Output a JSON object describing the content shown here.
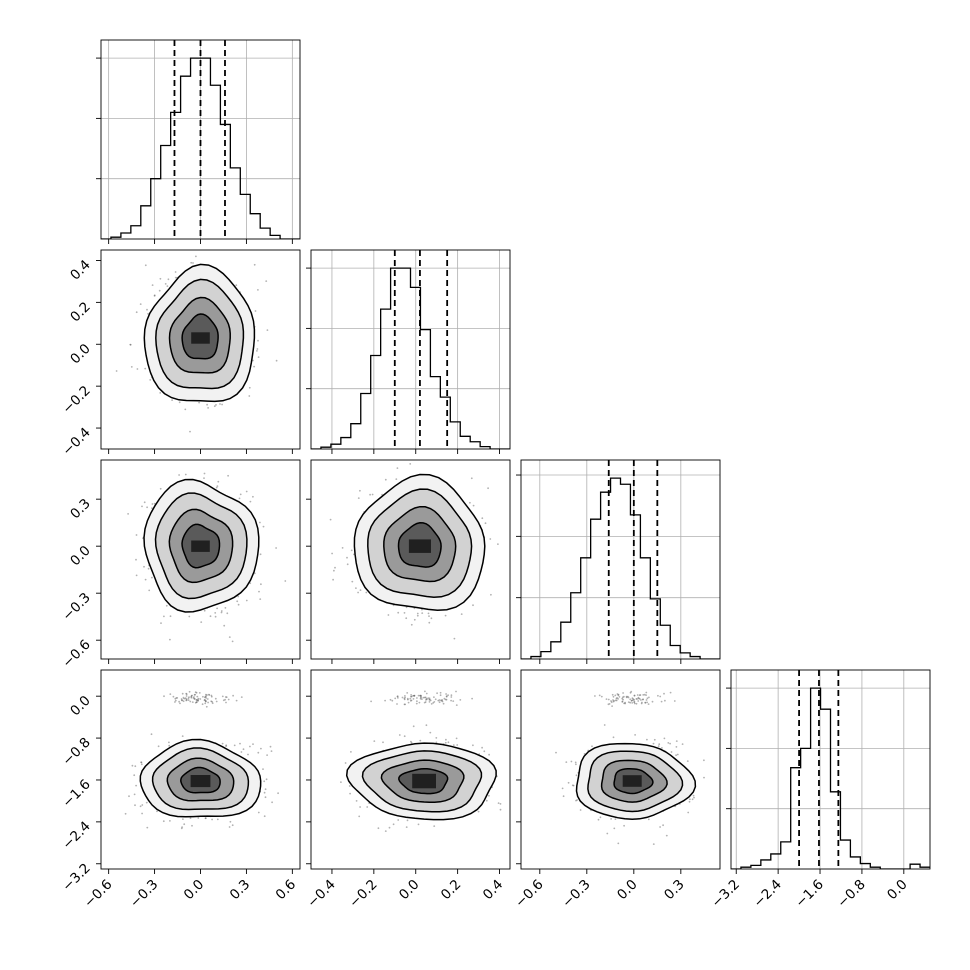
{
  "chart_data": {
    "type": "corner",
    "grid": true,
    "colors": {
      "line": "#000000",
      "density": "#000000",
      "points": "#555555",
      "gridline": "#b0b0b0"
    },
    "parameters": [
      {
        "index": 0,
        "range": [
          -0.65,
          0.65
        ],
        "ticks": [
          -0.6,
          -0.3,
          0.0,
          0.3,
          0.6
        ],
        "tick_labels": [
          "−0.6",
          "−0.3",
          "0.0",
          "0.3",
          "0.6"
        ],
        "quantiles": [
          -0.17,
          0.0,
          0.16
        ],
        "hist": {
          "start": -0.65,
          "step": 0.065,
          "counts": [
            0,
            3,
            10,
            22,
            55,
            100,
            155,
            210,
            270,
            300,
            300,
            255,
            190,
            118,
            74,
            42,
            18,
            6,
            0,
            0
          ]
        }
      },
      {
        "index": 1,
        "range": [
          -0.5,
          0.45
        ],
        "ticks": [
          -0.4,
          -0.2,
          0.0,
          0.2,
          0.4
        ],
        "tick_labels": [
          "−0.4",
          "−0.2",
          "0.0",
          "0.2",
          "0.4"
        ],
        "quantiles": [
          -0.1,
          0.02,
          0.15
        ],
        "hist": {
          "start": -0.5,
          "step": 0.0475,
          "counts": [
            0,
            3,
            8,
            19,
            42,
            92,
            155,
            232,
            300,
            300,
            268,
            198,
            120,
            86,
            45,
            21,
            12,
            4,
            0,
            0
          ]
        }
      },
      {
        "index": 2,
        "range": [
          -0.72,
          0.55
        ],
        "ticks": [
          -0.6,
          -0.3,
          0.0,
          0.3
        ],
        "tick_labels": [
          "−0.6",
          "−0.3",
          "0.0",
          "0.3"
        ],
        "quantiles": [
          -0.16,
          0.0,
          0.15
        ],
        "hist": {
          "start": -0.72,
          "step": 0.0635,
          "counts": [
            0,
            4,
            12,
            28,
            60,
            108,
            165,
            228,
            272,
            295,
            285,
            235,
            165,
            98,
            55,
            22,
            10,
            4,
            0,
            0
          ]
        }
      },
      {
        "index": 3,
        "range": [
          -3.3,
          0.5
        ],
        "ticks": [
          -3.2,
          -2.4,
          -1.6,
          -0.8,
          0.0
        ],
        "tick_labels": [
          "−3.2",
          "−2.4",
          "−1.6",
          "−0.8",
          "0.0"
        ],
        "quantiles": [
          -2.0,
          -1.62,
          -1.25
        ],
        "hist": {
          "start": -3.3,
          "step": 0.19,
          "counts": [
            0,
            3,
            6,
            15,
            25,
            45,
            168,
            200,
            300,
            265,
            128,
            48,
            20,
            9,
            3,
            0,
            0,
            0,
            8,
            3
          ]
        }
      }
    ],
    "density_panels": [
      {
        "x": 0,
        "y": 1,
        "center": [
          0.0,
          0.03
        ],
        "sigma": [
          0.15,
          0.13
        ]
      },
      {
        "x": 0,
        "y": 2,
        "center": [
          0.0,
          0.0
        ],
        "sigma": [
          0.15,
          0.17
        ]
      },
      {
        "x": 1,
        "y": 2,
        "center": [
          0.02,
          0.0
        ],
        "sigma": [
          0.13,
          0.17
        ]
      },
      {
        "x": 0,
        "y": 3,
        "center": [
          0.0,
          -1.62
        ],
        "sigma": [
          0.16,
          0.3
        ]
      },
      {
        "x": 1,
        "y": 3,
        "center": [
          0.04,
          -1.62
        ],
        "sigma": [
          0.14,
          0.3
        ]
      },
      {
        "x": 2,
        "y": 3,
        "center": [
          -0.01,
          -1.62
        ],
        "sigma": [
          0.15,
          0.3
        ]
      }
    ]
  }
}
